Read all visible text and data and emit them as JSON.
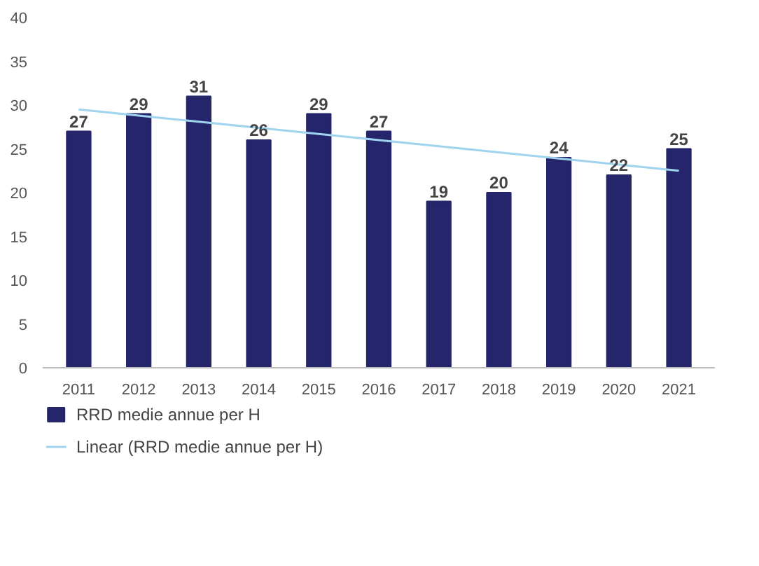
{
  "chart_data": {
    "type": "bar",
    "categories": [
      "2011",
      "2012",
      "2013",
      "2014",
      "2015",
      "2016",
      "2017",
      "2018",
      "2019",
      "2020",
      "2021"
    ],
    "series": [
      {
        "name": "RRD medie annue per H",
        "color": "#25256b",
        "values": [
          27,
          29,
          31,
          26,
          29,
          27,
          19,
          20,
          24,
          22,
          25
        ],
        "value_labels": [
          "27",
          "29",
          "31",
          "26",
          "29",
          "27",
          "19",
          "20",
          "24",
          "22",
          "25"
        ]
      },
      {
        "name": "Linear (RRD medie annue per H)",
        "type": "line",
        "color": "#9fd3ee",
        "values": [
          29.5,
          28.8,
          28.1,
          27.4,
          26.7,
          26.0,
          25.3,
          24.6,
          23.9,
          23.2,
          22.5
        ]
      }
    ],
    "ylim": [
      0,
      40
    ],
    "yticks": [
      0,
      5,
      10,
      15,
      20,
      25,
      30,
      35,
      40
    ],
    "legend": "bottom"
  }
}
